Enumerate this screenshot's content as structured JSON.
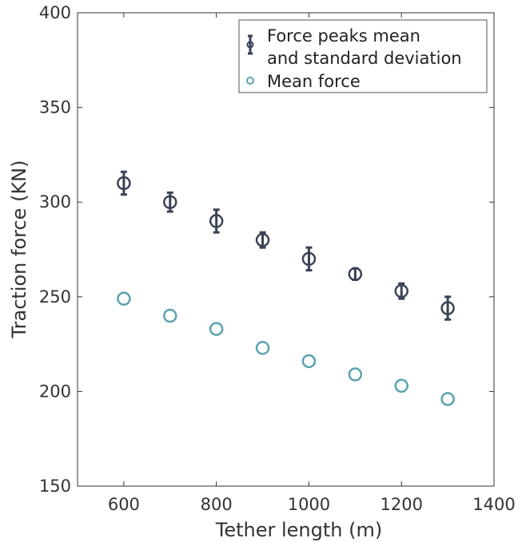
{
  "chart_data": {
    "type": "scatter",
    "xlabel": "Tether length (m)",
    "ylabel": "Traction force (KN)",
    "xlim": [
      500,
      1400
    ],
    "ylim": [
      150,
      400
    ],
    "x_ticks": [
      600,
      800,
      1000,
      1200,
      1400
    ],
    "y_ticks": [
      150,
      200,
      250,
      300,
      350,
      400
    ],
    "grid": false,
    "legend_position": "top-right",
    "series": [
      {
        "name": "Force peaks mean and standard deviation",
        "legend_lines": [
          "Force peaks mean",
          "and standard deviation"
        ],
        "color": "#3a4255",
        "x": [
          600,
          700,
          800,
          900,
          1000,
          1100,
          1200,
          1300
        ],
        "y": [
          310,
          300,
          290,
          280,
          270,
          262,
          253,
          244
        ],
        "err": [
          6,
          5,
          6,
          4,
          6,
          3,
          4,
          6
        ]
      },
      {
        "name": "Mean force",
        "color": "#5aa3ad",
        "x": [
          600,
          700,
          800,
          900,
          1000,
          1100,
          1200,
          1300
        ],
        "y": [
          249,
          240,
          233,
          223,
          216,
          209,
          203,
          196
        ]
      }
    ]
  }
}
